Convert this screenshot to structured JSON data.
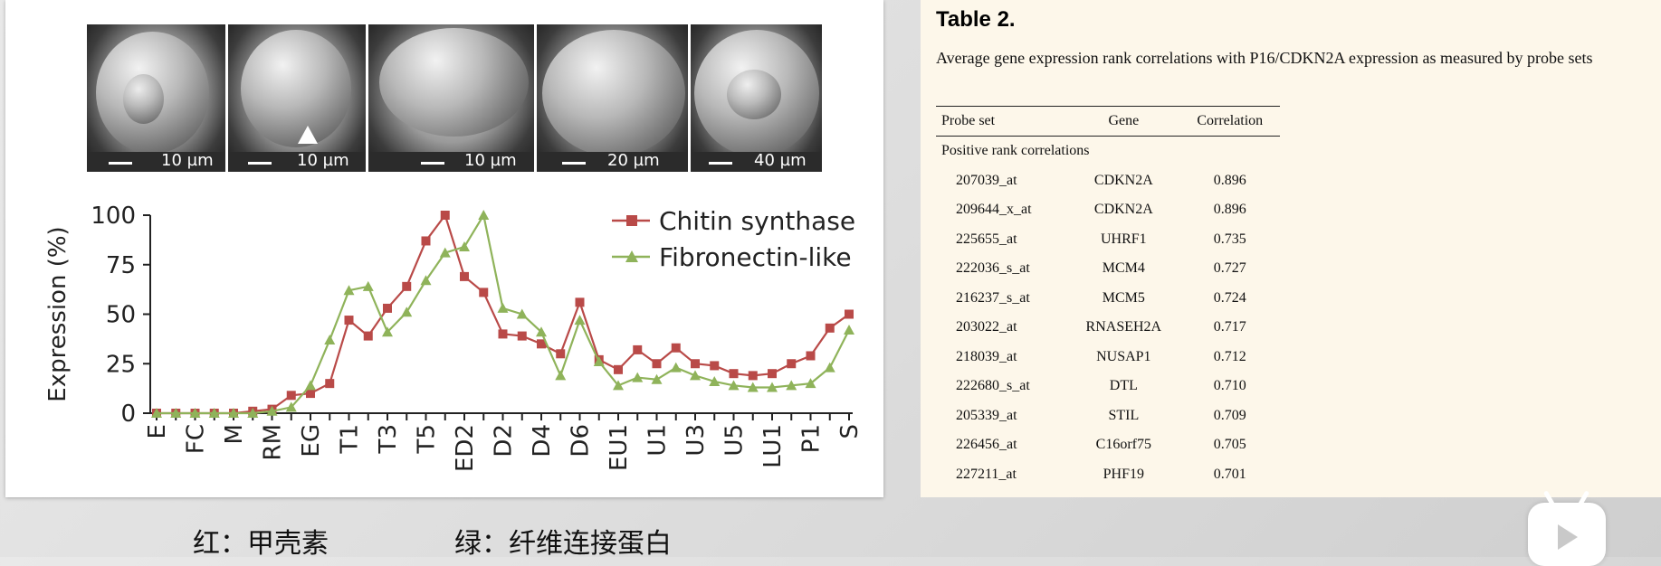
{
  "figure": {
    "micrographs": [
      {
        "scale": "10 µm"
      },
      {
        "scale": "10 µm"
      },
      {
        "scale": "10 µm"
      },
      {
        "scale": "20 µm"
      },
      {
        "scale": "40 µm"
      }
    ]
  },
  "chart_data": {
    "type": "line",
    "ylabel": "Expression (%)",
    "ylim": [
      0,
      100
    ],
    "yticks": [
      0,
      25,
      50,
      75,
      100
    ],
    "x_tick_labels": [
      "E",
      "FC",
      "M",
      "RM",
      "EG",
      "T1",
      "T3",
      "T5",
      "ED2",
      "D2",
      "D4",
      "D6",
      "EU1",
      "U1",
      "U3",
      "U5",
      "LU1",
      "P1",
      "S"
    ],
    "x_points": [
      "E",
      "",
      "FC",
      "",
      "M",
      "",
      "RM",
      "",
      "EG",
      "",
      "T1",
      "",
      "T3",
      "",
      "T5",
      "",
      "ED2",
      "",
      "D2",
      "",
      "D4",
      "",
      "D6",
      "",
      "EU1",
      "",
      "U1",
      "",
      "U3",
      "",
      "U5",
      "",
      "LU1",
      "",
      "P1",
      "",
      "S"
    ],
    "legend_position": "top-right",
    "series": [
      {
        "name": "Chitin synthase",
        "color": "#b94a48",
        "marker": "square",
        "values": [
          0,
          0,
          0,
          0,
          0,
          1,
          2,
          9,
          10,
          15,
          47,
          39,
          53,
          64,
          87,
          101,
          69,
          61,
          40,
          39,
          35,
          30,
          56,
          27,
          22,
          32,
          25,
          33,
          25,
          24,
          20,
          19,
          20,
          25,
          29,
          43,
          50
        ]
      },
      {
        "name": "Fibronectin-like",
        "color": "#8fb35a",
        "marker": "triangle",
        "values": [
          0,
          0,
          0,
          0,
          0,
          0,
          1,
          3,
          14,
          37,
          62,
          64,
          41,
          51,
          67,
          81,
          84,
          101,
          53,
          50,
          41,
          19,
          47,
          26,
          14,
          18,
          17,
          23,
          19,
          16,
          14,
          13,
          13,
          14,
          15,
          23,
          42
        ]
      }
    ]
  },
  "table": {
    "title": "Table 2.",
    "caption": "Average gene expression rank correlations with P16/CDKN2A expression as measured by probe sets",
    "headers": [
      "Probe set",
      "Gene",
      "Correlation"
    ],
    "subheading": "Positive rank correlations",
    "rows": [
      {
        "probe": "207039_at",
        "gene": "CDKN2A",
        "corr": "0.896"
      },
      {
        "probe": "209644_x_at",
        "gene": "CDKN2A",
        "corr": "0.896"
      },
      {
        "probe": "225655_at",
        "gene": "UHRF1",
        "corr": "0.735"
      },
      {
        "probe": "222036_s_at",
        "gene": "MCM4",
        "corr": "0.727"
      },
      {
        "probe": "216237_s_at",
        "gene": "MCM5",
        "corr": "0.724"
      },
      {
        "probe": "203022_at",
        "gene": "RNASEH2A",
        "corr": "0.717"
      },
      {
        "probe": "218039_at",
        "gene": "NUSAP1",
        "corr": "0.712"
      },
      {
        "probe": "222680_s_at",
        "gene": "DTL",
        "corr": "0.710"
      },
      {
        "probe": "205339_at",
        "gene": "STIL",
        "corr": "0.709"
      },
      {
        "probe": "226456_at",
        "gene": "C16orf75",
        "corr": "0.705"
      },
      {
        "probe": "227211_at",
        "gene": "PHF19",
        "corr": "0.701"
      }
    ]
  },
  "captions": {
    "red": "红：甲壳素",
    "green": "绿：纤维连接蛋白"
  },
  "player": {
    "icon": "bilibili-play-icon"
  }
}
